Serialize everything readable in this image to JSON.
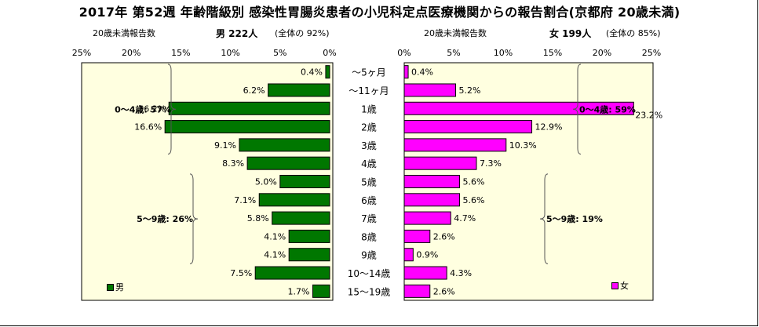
{
  "title": "2017年 第52週 年齢階級別 感染性胃腸炎患者の小児科定点医療機関からの報告割合(京都府 20歳未満)",
  "header_male": {
    "prefix": "20歳未満報告数",
    "label": "男 222人",
    "share": "(全体の 92%)"
  },
  "header_female": {
    "prefix": "20歳未満報告数",
    "label": "女 199人",
    "share": "(全体の 85%)"
  },
  "chart_data": {
    "type": "bar",
    "orientation": "horizontal-population-pyramid",
    "categories": [
      "～5ヶ月",
      "～11ヶ月",
      "1歳",
      "2歳",
      "3歳",
      "4歳",
      "5歳",
      "6歳",
      "7歳",
      "8歳",
      "9歳",
      "10～14歳",
      "15～19歳"
    ],
    "series": [
      {
        "name": "男",
        "color": "#007700",
        "values": [
          0.4,
          6.2,
          16.2,
          16.6,
          9.1,
          8.3,
          5.0,
          7.1,
          5.8,
          4.1,
          4.1,
          7.5,
          1.7
        ]
      },
      {
        "name": "女",
        "color": "#ff00ff",
        "values": [
          0.4,
          5.2,
          23.2,
          12.9,
          10.3,
          7.3,
          5.6,
          5.6,
          4.7,
          2.6,
          0.9,
          4.3,
          2.6
        ]
      }
    ],
    "xlim": [
      0,
      25
    ],
    "ticks": [
      "25%",
      "20%",
      "15%",
      "10%",
      "5%",
      "0%"
    ],
    "ticks_right": [
      "0%",
      "5%",
      "10%",
      "15%",
      "20%",
      "25%"
    ],
    "plot_background": "#ffffe0",
    "annotations": {
      "male": [
        {
          "text": "0～4歳: 57%",
          "from": 0,
          "to": 5
        },
        {
          "text": "5～9歳: 26%",
          "from": 6,
          "to": 10
        }
      ],
      "female": [
        {
          "text": "0～4歳: 59%",
          "from": 0,
          "to": 5
        },
        {
          "text": "5～9歳: 19%",
          "from": 6,
          "to": 10
        }
      ]
    }
  }
}
